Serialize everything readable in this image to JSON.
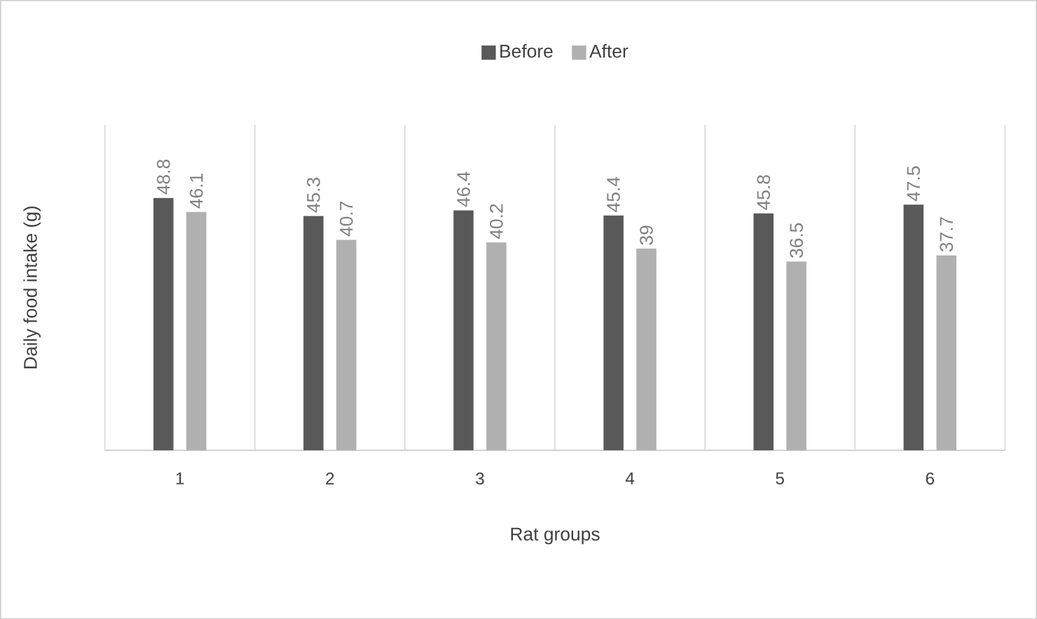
{
  "chart_data": {
    "type": "bar",
    "xlabel": "Rat groups",
    "ylabel": "Daily food intake (g)",
    "categories": [
      "1",
      "2",
      "3",
      "4",
      "5",
      "6"
    ],
    "series": [
      {
        "name": "Before",
        "color": "#595959",
        "values": [
          48.8,
          45.3,
          46.4,
          45.4,
          45.8,
          47.5
        ]
      },
      {
        "name": "After",
        "color": "#b0b0b0",
        "values": [
          46.1,
          40.7,
          40.2,
          39,
          36.5,
          37.7
        ]
      }
    ],
    "data_labels": true,
    "grid": "x",
    "legend": "top"
  }
}
